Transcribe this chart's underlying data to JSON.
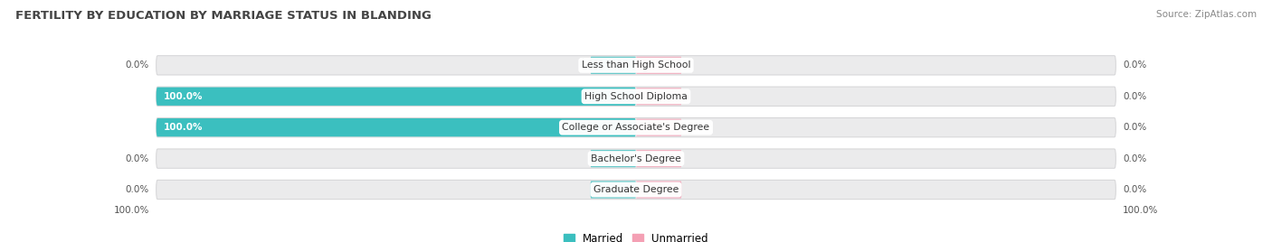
{
  "title": "FERTILITY BY EDUCATION BY MARRIAGE STATUS IN BLANDING",
  "source": "Source: ZipAtlas.com",
  "categories": [
    "Less than High School",
    "High School Diploma",
    "College or Associate's Degree",
    "Bachelor's Degree",
    "Graduate Degree"
  ],
  "married_values": [
    0.0,
    100.0,
    100.0,
    0.0,
    0.0
  ],
  "unmarried_values": [
    0.0,
    0.0,
    0.0,
    0.0,
    0.0
  ],
  "married_color": "#3BBFBF",
  "unmarried_color": "#F4A0B4",
  "bar_bg_color": "#EBEBEC",
  "bar_border_color": "#D4D4D6",
  "title_color": "#444444",
  "axis_left_label": "100.0%",
  "axis_right_label": "100.0%",
  "figsize": [
    14.06,
    2.68
  ],
  "dpi": 100
}
